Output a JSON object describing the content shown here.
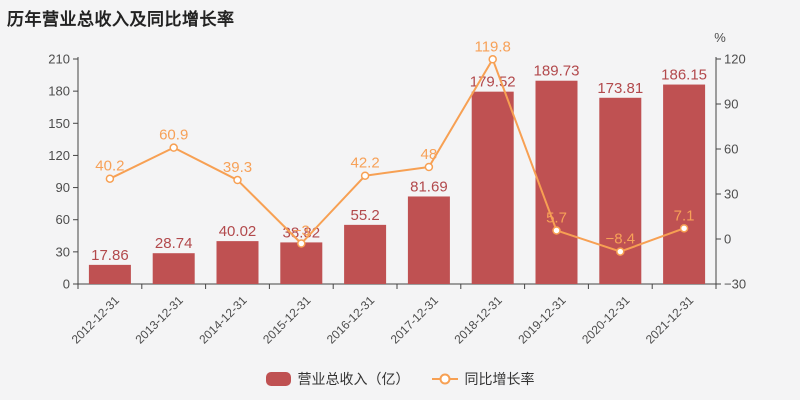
{
  "chart_data": {
    "type": "bar+line",
    "title": "历年营业总收入及同比增长率",
    "categories": [
      "2012-12-31",
      "2013-12-31",
      "2014-12-31",
      "2015-12-31",
      "2016-12-31",
      "2017-12-31",
      "2018-12-31",
      "2019-12-31",
      "2020-12-31",
      "2021-12-31"
    ],
    "series": [
      {
        "name": "营业总收入（亿）",
        "type": "bar",
        "axis": "left",
        "color": "#bf5152",
        "label_color": "#b2494c",
        "values": [
          17.86,
          28.74,
          40.02,
          38.82,
          55.2,
          81.69,
          179.52,
          189.73,
          173.81,
          186.15
        ],
        "labels": [
          "17.86",
          "28.74",
          "40.02",
          "38.82",
          "55.2",
          "81.69",
          "179.52",
          "189.73",
          "173.81",
          "186.15"
        ]
      },
      {
        "name": "同比增长率",
        "type": "line",
        "axis": "right",
        "color": "#f7a053",
        "label_color": "#f7a158",
        "values": [
          40.2,
          60.9,
          39.3,
          -3,
          42.2,
          48,
          119.8,
          5.7,
          -8.4,
          7.1
        ],
        "labels": [
          "40.2",
          "60.9",
          "39.3",
          "−3",
          "42.2",
          "48",
          "119.8",
          "5.7",
          "−8.4",
          "7.1"
        ]
      }
    ],
    "left_axis": {
      "min": 0,
      "max": 210,
      "ticks": [
        0,
        30,
        60,
        90,
        120,
        150,
        180,
        210
      ],
      "tick_labels": [
        "0",
        "30",
        "60",
        "90",
        "120",
        "150",
        "180",
        "210"
      ]
    },
    "right_axis": {
      "min": -30,
      "max": 120,
      "ticks": [
        -30,
        0,
        30,
        60,
        90,
        120
      ],
      "tick_labels": [
        "−30",
        "0",
        "30",
        "60",
        "90",
        "120"
      ],
      "unit": "%"
    },
    "grid": false,
    "legend_position": "bottom"
  },
  "colors": {
    "background": "#f4f4f5",
    "axis_line": "#444444",
    "axis_text": "#4d4d4d",
    "title_text": "#222222",
    "legend_text": "#333333",
    "marker_fill": "#ffffff"
  }
}
